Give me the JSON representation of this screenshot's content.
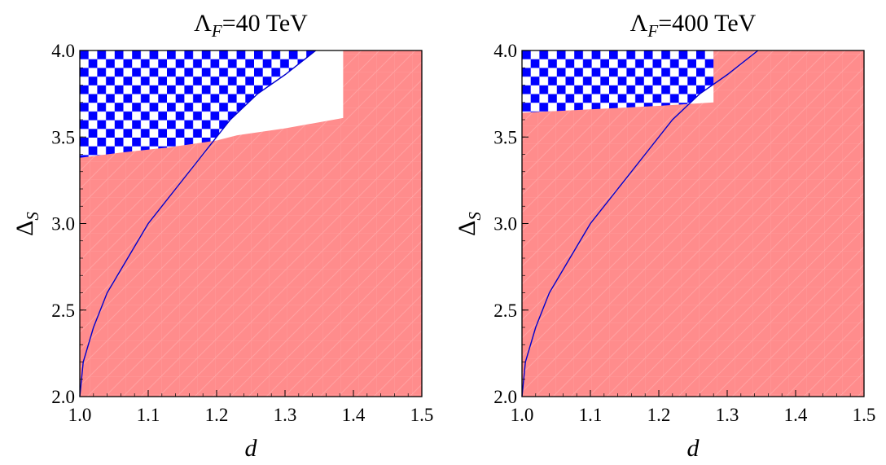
{
  "chart_data": [
    {
      "type": "region",
      "title_symbol": "Λ",
      "title_subscript": "F",
      "title_value": "=40 TeV",
      "xlabel": "d",
      "ylabel_symbol": "Δ",
      "ylabel_subscript": "S",
      "xlim": [
        1.0,
        1.5
      ],
      "ylim": [
        2.0,
        4.0
      ],
      "xticks": [
        "1.0",
        "1.1",
        "1.2",
        "1.3",
        "1.4",
        "1.5"
      ],
      "yticks": [
        "2.0",
        "2.5",
        "3.0",
        "3.5",
        "4.0"
      ],
      "boundary_curve": {
        "color": "#0000cc",
        "points": [
          [
            1.0,
            2.0
          ],
          [
            1.005,
            2.2
          ],
          [
            1.02,
            2.4
          ],
          [
            1.04,
            2.6
          ],
          [
            1.07,
            2.8
          ],
          [
            1.1,
            3.0
          ],
          [
            1.14,
            3.2
          ],
          [
            1.18,
            3.4
          ],
          [
            1.22,
            3.6
          ],
          [
            1.26,
            3.75
          ],
          [
            1.3,
            3.86
          ],
          [
            1.345,
            4.0
          ]
        ]
      },
      "checkered_region": {
        "description_color": "#0000ff",
        "bounded_by": "left of boundary curve"
      },
      "shaded_region": {
        "color": "#ff8c8c",
        "polygon": [
          [
            1.0,
            2.0
          ],
          [
            1.0,
            3.38
          ],
          [
            1.06,
            3.41
          ],
          [
            1.13,
            3.44
          ],
          [
            1.2,
            3.48
          ],
          [
            1.23,
            3.51
          ],
          [
            1.3,
            3.55
          ],
          [
            1.385,
            3.61
          ],
          [
            1.385,
            4.0
          ],
          [
            1.5,
            4.0
          ],
          [
            1.5,
            2.0
          ]
        ]
      }
    },
    {
      "type": "region",
      "title_symbol": "Λ",
      "title_subscript": "F",
      "title_value": "=400 TeV",
      "xlabel": "d",
      "ylabel_symbol": "Δ",
      "ylabel_subscript": "S",
      "xlim": [
        1.0,
        1.5
      ],
      "ylim": [
        2.0,
        4.0
      ],
      "xticks": [
        "1.0",
        "1.1",
        "1.2",
        "1.3",
        "1.4",
        "1.5"
      ],
      "yticks": [
        "2.0",
        "2.5",
        "3.0",
        "3.5",
        "4.0"
      ],
      "boundary_curve": {
        "color": "#0000cc",
        "points": [
          [
            1.0,
            2.0
          ],
          [
            1.005,
            2.2
          ],
          [
            1.02,
            2.4
          ],
          [
            1.04,
            2.6
          ],
          [
            1.07,
            2.8
          ],
          [
            1.1,
            3.0
          ],
          [
            1.14,
            3.2
          ],
          [
            1.18,
            3.4
          ],
          [
            1.22,
            3.6
          ],
          [
            1.26,
            3.75
          ],
          [
            1.3,
            3.86
          ],
          [
            1.345,
            4.0
          ]
        ]
      },
      "checkered_region": {
        "description_color": "#0000ff",
        "bounded_by": "left of boundary curve"
      },
      "shaded_region": {
        "color": "#ff8c8c",
        "polygon": [
          [
            1.0,
            2.0
          ],
          [
            1.0,
            3.64
          ],
          [
            1.1,
            3.66
          ],
          [
            1.2,
            3.68
          ],
          [
            1.28,
            3.7
          ],
          [
            1.28,
            4.0
          ],
          [
            1.5,
            4.0
          ],
          [
            1.5,
            2.0
          ]
        ]
      }
    }
  ]
}
